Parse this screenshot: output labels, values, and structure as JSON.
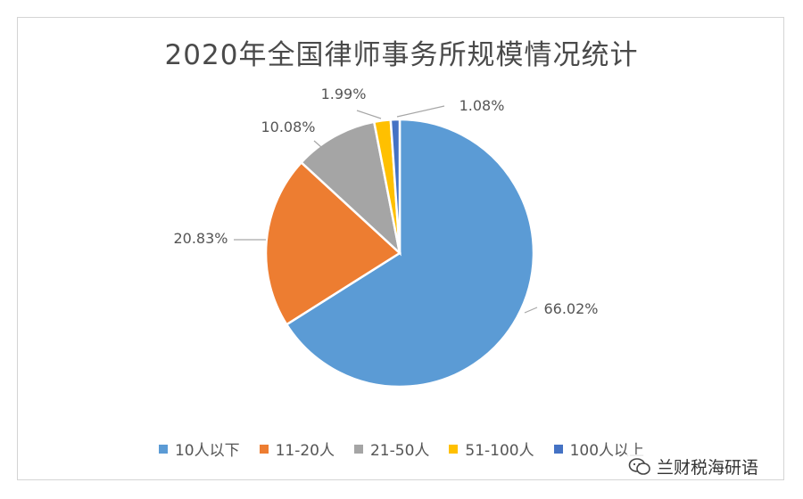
{
  "chart_data": {
    "type": "pie",
    "title": "2020年全国律师事务所规模情况统计",
    "series": [
      {
        "name": "10人以下",
        "value": 66.02,
        "label": "66.02%",
        "color": "#5B9BD5"
      },
      {
        "name": "11-20人",
        "value": 20.83,
        "label": "20.83%",
        "color": "#ED7D31"
      },
      {
        "name": "21-50人",
        "value": 10.08,
        "label": "10.08%",
        "color": "#A5A5A5"
      },
      {
        "name": "51-100人",
        "value": 1.99,
        "label": "1.99%",
        "color": "#FFC000"
      },
      {
        "name": "100人以上",
        "value": 1.08,
        "label": "1.08%",
        "color": "#4472C4"
      }
    ],
    "legend_position": "bottom"
  },
  "watermark": {
    "text": "兰财税海研语",
    "icon": "wechat-icon"
  }
}
